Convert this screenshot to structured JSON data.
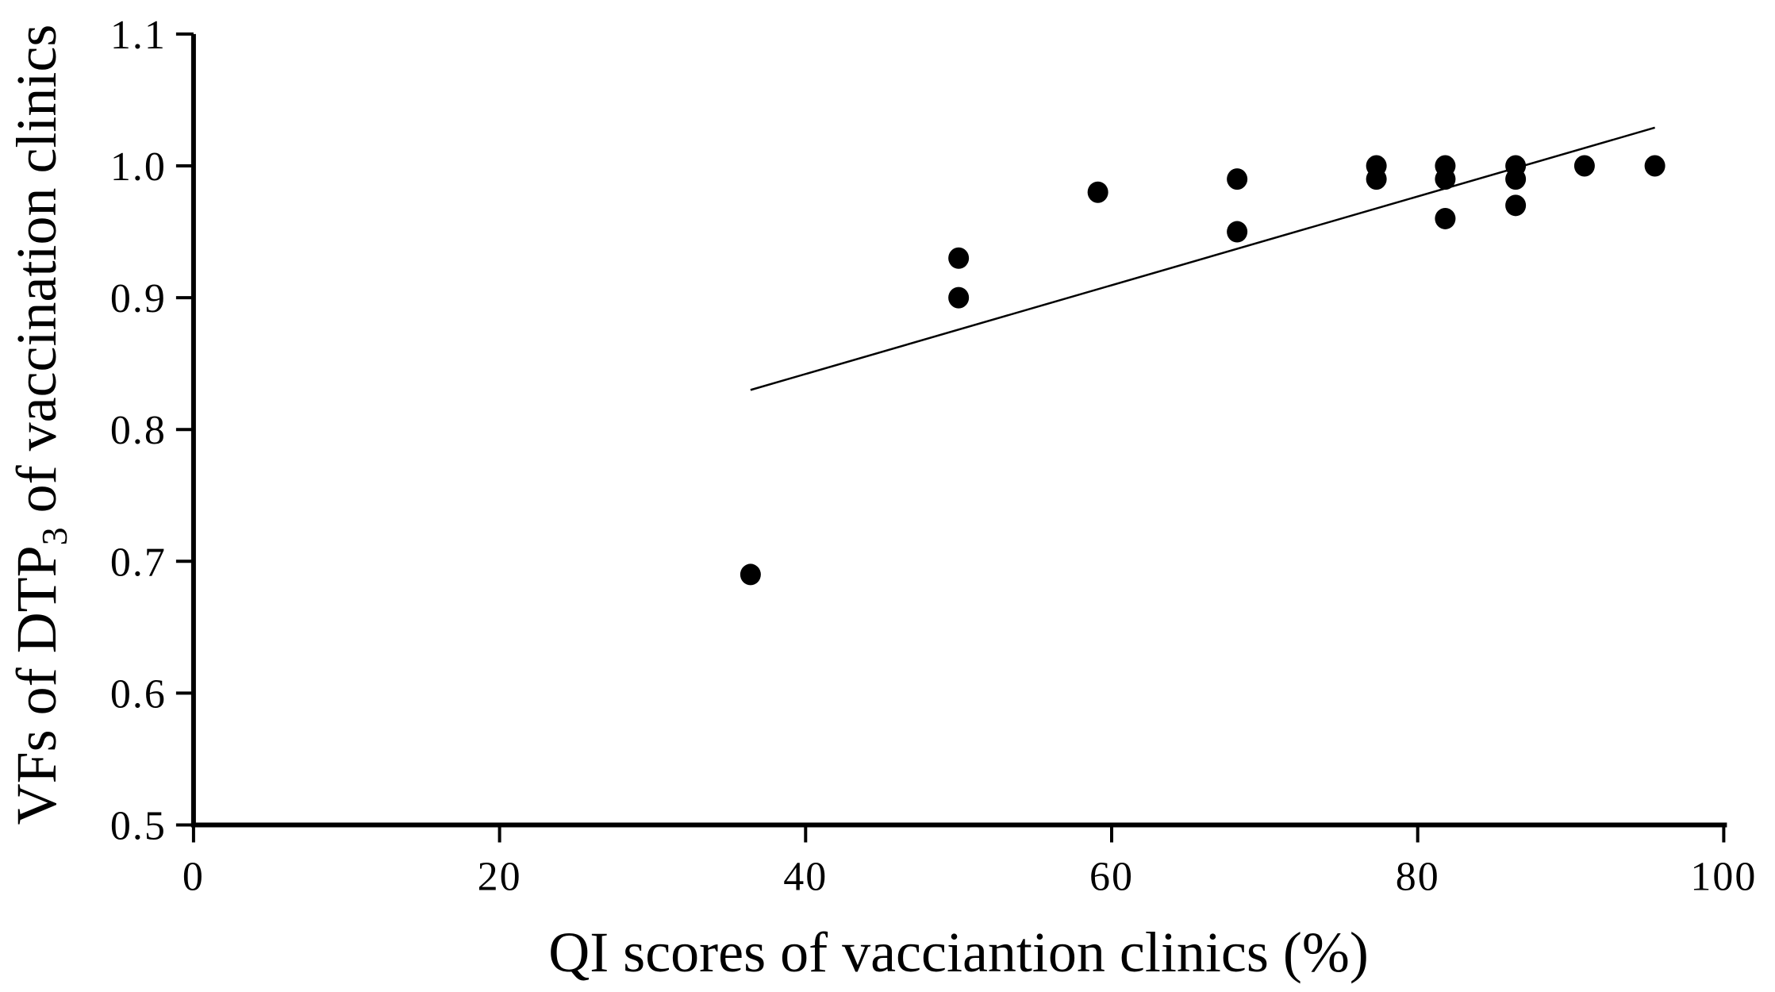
{
  "figure": {
    "background_color": "#ffffff",
    "ink_color": "#000000"
  },
  "chart_data": {
    "type": "scatter",
    "title": "",
    "xlabel": "QI scores of vacciantion clinics (%)",
    "ylabel": "VFs of DTP3 of vaccination clinics",
    "ylabel_parts": {
      "pre": "VFs of DTP",
      "sub": "3",
      "post": " of vaccination clinics"
    },
    "xlim": [
      0,
      100
    ],
    "ylim": [
      0.5,
      1.1
    ],
    "x_ticks": [
      0,
      20,
      40,
      60,
      80,
      100
    ],
    "x_tick_labels": [
      "0",
      "20",
      "40",
      "60",
      "80",
      "100"
    ],
    "y_ticks": [
      0.5,
      0.6,
      0.7,
      0.8,
      0.9,
      1.0,
      1.1
    ],
    "y_tick_labels": [
      "0.5",
      "0.6",
      "0.7",
      "0.8",
      "0.9",
      "1.0",
      "1.1"
    ],
    "grid": false,
    "legend": null,
    "marker": {
      "shape": "circle",
      "color": "#000000",
      "radius_px": 13
    },
    "points": [
      {
        "x": 36.4,
        "y": 0.69
      },
      {
        "x": 50.0,
        "y": 0.9
      },
      {
        "x": 50.0,
        "y": 0.93
      },
      {
        "x": 59.1,
        "y": 0.98
      },
      {
        "x": 68.2,
        "y": 0.95
      },
      {
        "x": 68.2,
        "y": 0.99
      },
      {
        "x": 77.3,
        "y": 0.99
      },
      {
        "x": 77.3,
        "y": 1.0
      },
      {
        "x": 81.8,
        "y": 0.96
      },
      {
        "x": 81.8,
        "y": 0.99
      },
      {
        "x": 81.8,
        "y": 1.0
      },
      {
        "x": 86.4,
        "y": 0.97
      },
      {
        "x": 86.4,
        "y": 0.99
      },
      {
        "x": 86.4,
        "y": 1.0
      },
      {
        "x": 90.9,
        "y": 1.0
      },
      {
        "x": 95.5,
        "y": 1.0
      }
    ],
    "trend_line": {
      "x1": 36.4,
      "y1": 0.83,
      "x2": 95.5,
      "y2": 1.029,
      "color": "#000000"
    }
  }
}
